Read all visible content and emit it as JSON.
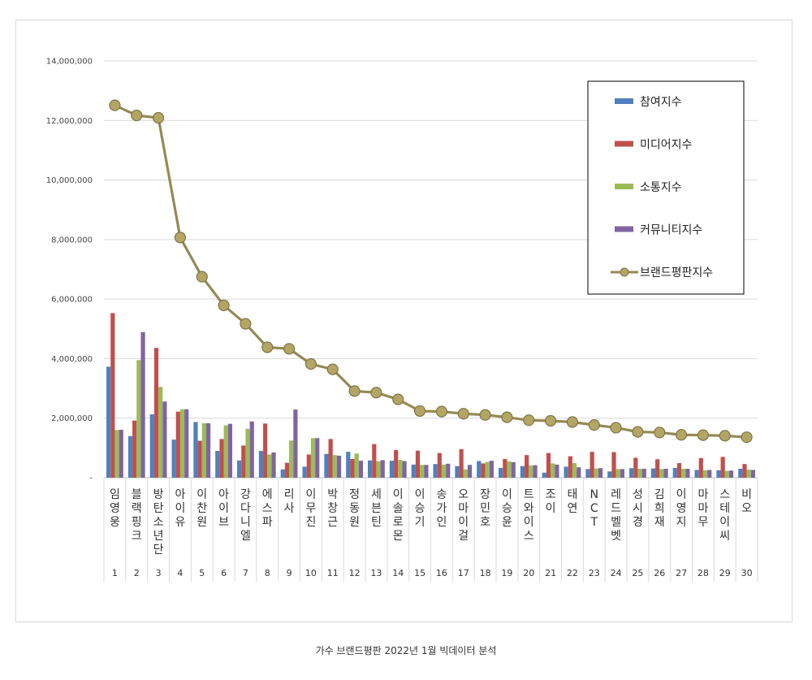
{
  "caption": "가수 브랜드평판  2022년 1월 빅데이터 분석",
  "colors": {
    "participation": "#4f81bd",
    "media": "#c0504d",
    "communication": "#9bbb59",
    "community": "#8064a2",
    "brand_line": "#948a54",
    "brand_marker": "#b3a665",
    "grid": "#d9d9d9",
    "axis": "#bfbfbf"
  },
  "chart_data": {
    "type": "bar",
    "title": "",
    "xlabel": "",
    "ylabel": "",
    "ylim": [
      0,
      14000000
    ],
    "yticks": [
      "-",
      "2,000,000",
      "4,000,000",
      "6,000,000",
      "8,000,000",
      "10,000,000",
      "12,000,000",
      "14,000,000"
    ],
    "grid": true,
    "legend_position": "top-right",
    "categories": [
      "임영웅",
      "블랙핑크",
      "방탄소년단",
      "아이유",
      "이찬원",
      "아이브",
      "강다니엘",
      "에스파",
      "리사",
      "이무진",
      "박창근",
      "정동원",
      "세븐틴",
      "이솔로몬",
      "이승기",
      "송가인",
      "오마이걸",
      "장민호",
      "이승윤",
      "트와이스",
      "조이",
      "태연",
      "NCT",
      "레드벨벳",
      "성시경",
      "김희재",
      "이영지",
      "마마무",
      "스테이씨",
      "비오"
    ],
    "ranks": [
      "1",
      "2",
      "3",
      "4",
      "5",
      "6",
      "7",
      "8",
      "9",
      "10",
      "11",
      "12",
      "13",
      "14",
      "15",
      "16",
      "17",
      "18",
      "19",
      "20",
      "21",
      "22",
      "23",
      "24",
      "25",
      "26",
      "27",
      "28",
      "29",
      "30"
    ],
    "series": [
      {
        "name": "참여지수",
        "kind": "bar",
        "color_key": "participation",
        "values": [
          3730000,
          1400000,
          2130000,
          1280000,
          1870000,
          900000,
          580000,
          900000,
          280000,
          370000,
          800000,
          870000,
          580000,
          570000,
          440000,
          460000,
          390000,
          560000,
          330000,
          390000,
          170000,
          370000,
          290000,
          210000,
          320000,
          310000,
          330000,
          260000,
          250000,
          300000
        ]
      },
      {
        "name": "미디어지수",
        "kind": "bar",
        "color_key": "media",
        "values": [
          5530000,
          1920000,
          4360000,
          2220000,
          1240000,
          1300000,
          1080000,
          1820000,
          500000,
          780000,
          1300000,
          630000,
          1130000,
          930000,
          910000,
          830000,
          960000,
          480000,
          630000,
          760000,
          830000,
          720000,
          870000,
          860000,
          670000,
          620000,
          490000,
          660000,
          700000,
          460000
        ]
      },
      {
        "name": "소통지수",
        "kind": "bar",
        "color_key": "communication",
        "values": [
          1600000,
          3950000,
          3050000,
          2300000,
          1830000,
          1760000,
          1640000,
          780000,
          1250000,
          1330000,
          760000,
          810000,
          550000,
          600000,
          430000,
          440000,
          280000,
          530000,
          550000,
          410000,
          480000,
          490000,
          310000,
          290000,
          300000,
          290000,
          300000,
          250000,
          230000,
          270000
        ]
      },
      {
        "name": "커뮤니티지수",
        "kind": "bar",
        "color_key": "community",
        "values": [
          1610000,
          4890000,
          2560000,
          2300000,
          1830000,
          1810000,
          1890000,
          850000,
          2290000,
          1330000,
          740000,
          570000,
          590000,
          560000,
          430000,
          470000,
          430000,
          570000,
          520000,
          420000,
          440000,
          350000,
          320000,
          290000,
          300000,
          300000,
          300000,
          260000,
          240000,
          260000
        ]
      },
      {
        "name": "브랜드평판지수",
        "kind": "line",
        "color_key": "brand_line",
        "values": [
          12510000,
          12170000,
          12090000,
          8070000,
          6750000,
          5790000,
          5170000,
          4380000,
          4330000,
          3820000,
          3640000,
          2910000,
          2860000,
          2630000,
          2240000,
          2220000,
          2150000,
          2110000,
          2030000,
          1930000,
          1910000,
          1870000,
          1770000,
          1680000,
          1540000,
          1520000,
          1440000,
          1430000,
          1410000,
          1360000
        ]
      }
    ]
  }
}
